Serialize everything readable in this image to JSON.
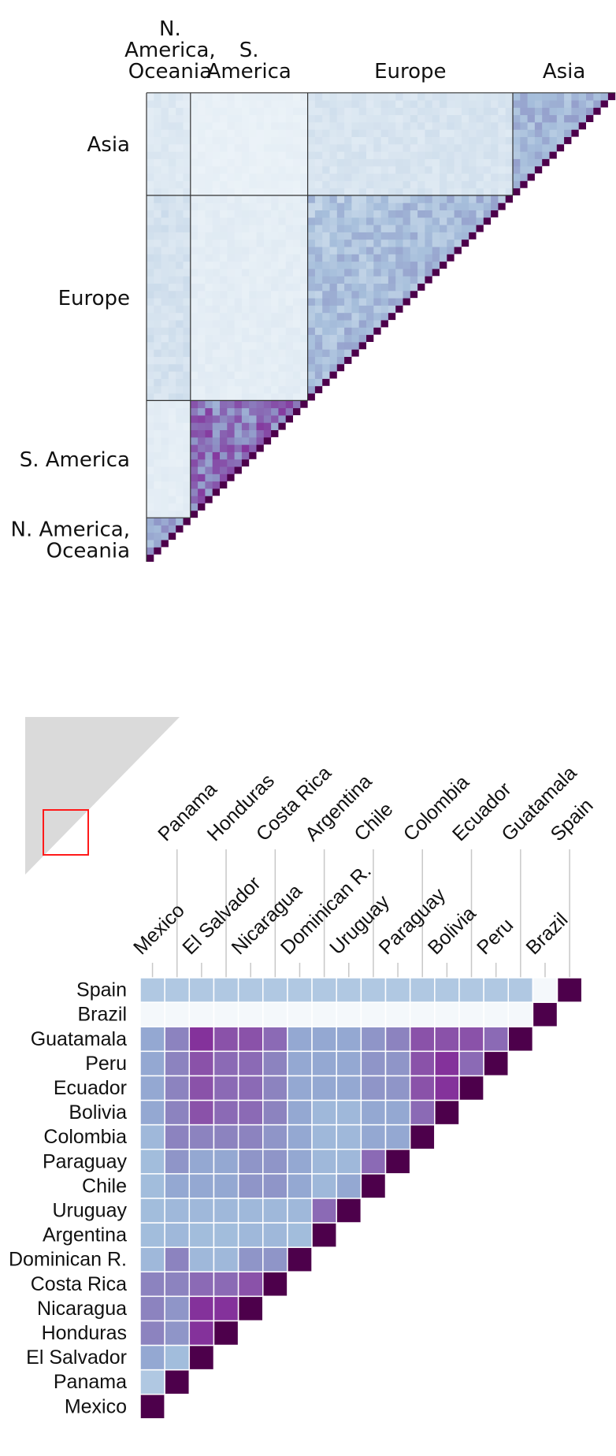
{
  "chart_data": [
    {
      "type": "heatmap",
      "shape": "lower-triangle",
      "groups": [
        "N. America, Oceania",
        "S. America",
        "Europe",
        "Asia"
      ],
      "group_sizes": [
        6,
        16,
        28,
        14
      ],
      "top_labels": [
        {
          "lines": [
            "N.",
            "America,",
            "Oceania"
          ]
        },
        {
          "lines": [
            "S.",
            "America"
          ]
        },
        {
          "lines": [
            "Europe"
          ]
        },
        {
          "lines": [
            "Asia"
          ]
        }
      ],
      "left_labels": [
        {
          "lines": [
            "Asia"
          ]
        },
        {
          "lines": [
            "Europe"
          ]
        },
        {
          "lines": [
            "S. America"
          ]
        },
        {
          "lines": [
            "N.  America,",
            "Oceania"
          ]
        }
      ],
      "level": [
        [
          0.45,
          0.08,
          0.1,
          0.1
        ],
        [
          0.1,
          0.62,
          0.09,
          0.13
        ],
        [
          0.2,
          0.1,
          0.38,
          0.16
        ],
        [
          0.14,
          0.07,
          0.18,
          0.4
        ]
      ],
      "diagonal_color": "#4d004b",
      "grid_color": "#333333",
      "highlight_region": "S. America, N. America & Oceania"
    },
    {
      "type": "heatmap",
      "shape": "lower-triangle",
      "columns_lower": [
        "Mexico",
        "El Salvador",
        "Nicaragua",
        "Dominican R.",
        "Uruguay",
        "Paraguay",
        "Bolivia",
        "Peru",
        "Brazil"
      ],
      "columns_upper": [
        "Panama",
        "Honduras",
        "Costa Rica",
        "Argentina",
        "Chile",
        "Colombia",
        "Ecuador",
        "Guatamala",
        "Spain"
      ],
      "rows": [
        "Spain",
        "Brazil",
        "Guatamala",
        "Peru",
        "Ecuador",
        "Bolivia",
        "Colombia",
        "Paraguay",
        "Chile",
        "Uruguay",
        "Argentina",
        "Dominican R.",
        "Costa Rica",
        "Nicaragua",
        "Honduras",
        "El Salvador",
        "Panama",
        "Mexico"
      ],
      "order_bottom_to_top": [
        "Mexico",
        "Panama",
        "El Salvador",
        "Honduras",
        "Nicaragua",
        "Costa Rica",
        "Dominican R.",
        "Argentina",
        "Uruguay",
        "Chile",
        "Paraguay",
        "Colombia",
        "Bolivia",
        "Ecuador",
        "Peru",
        "Guatamala",
        "Brazil",
        "Spain"
      ],
      "diagonal_color": "#4d004b",
      "colors": {
        "c0": "#f4f8fb",
        "c1": "#b0c8e2",
        "c2": "#a2bddc",
        "c3": "#9fb8da",
        "c4": "#94a8d2",
        "c5": "#8f95c8",
        "c6": "#8c83bf",
        "c7": "#8b6ab5",
        "c8": "#8a52a9",
        "c9": "#84329b"
      },
      "matrix": [
        [
          null
        ],
        [
          1,
          null
        ],
        [
          4,
          2,
          null
        ],
        [
          6,
          5,
          9,
          null
        ],
        [
          6,
          5,
          9,
          9,
          null
        ],
        [
          6,
          6,
          7,
          7,
          8,
          null
        ],
        [
          3,
          6,
          3,
          3,
          5,
          5,
          null
        ],
        [
          2,
          3,
          2,
          2,
          3,
          3,
          2,
          null
        ],
        [
          2,
          3,
          3,
          3,
          3,
          3,
          3,
          7,
          null
        ],
        [
          2,
          4,
          4,
          4,
          5,
          5,
          4,
          3,
          4,
          null
        ],
        [
          2,
          5,
          4,
          4,
          5,
          5,
          4,
          3,
          3,
          7,
          null
        ],
        [
          3,
          6,
          6,
          6,
          6,
          5,
          4,
          3,
          3,
          4,
          4,
          null
        ],
        [
          4,
          6,
          8,
          7,
          7,
          6,
          4,
          3,
          3,
          4,
          4,
          7,
          null
        ],
        [
          4,
          6,
          8,
          7,
          7,
          6,
          4,
          4,
          4,
          5,
          5,
          8,
          9,
          null
        ],
        [
          4,
          6,
          8,
          7,
          7,
          6,
          4,
          4,
          4,
          5,
          5,
          8,
          9,
          7,
          null
        ],
        [
          4,
          6,
          9,
          8,
          8,
          7,
          4,
          4,
          4,
          5,
          6,
          8,
          8,
          8,
          7,
          null
        ],
        [
          0,
          0,
          0,
          0,
          0,
          0,
          0,
          0,
          0,
          0,
          0,
          0,
          0,
          0,
          0,
          0,
          null
        ],
        [
          1,
          1,
          1,
          1,
          1,
          1,
          1,
          1,
          1,
          1,
          1,
          1,
          1,
          1,
          1,
          1,
          0,
          null
        ]
      ]
    }
  ]
}
